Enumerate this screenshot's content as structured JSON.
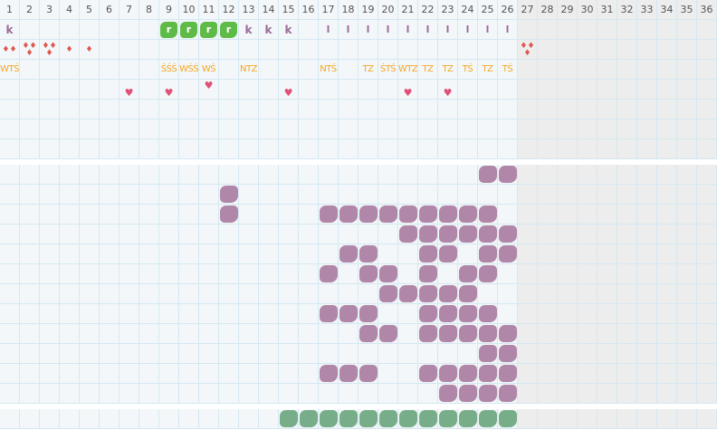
{
  "columns": [
    "1",
    "2",
    "3",
    "4",
    "5",
    "6",
    "7",
    "8",
    "9",
    "10",
    "11",
    "12",
    "13",
    "14",
    "15",
    "16",
    "17",
    "18",
    "19",
    "20",
    "21",
    "22",
    "23",
    "24",
    "25",
    "26",
    "27",
    "28",
    "29",
    "30",
    "31",
    "32",
    "33",
    "34",
    "35",
    "36"
  ],
  "active_days": 26,
  "colors": {
    "grid": "#d5e8f2",
    "cell": "#f3f7f9",
    "inactive": "#ededed",
    "letter": "#9a6b97",
    "badge": "#5fbb47",
    "drop": "#e0574d",
    "text": "#f5a623",
    "heart": "#e05078",
    "blob": "#b087a8",
    "blob_green": "#78ad8a"
  },
  "marks_row": {
    "1": "k",
    "9": "r",
    "10": "r",
    "11": "r",
    "12": "r",
    "13": "k",
    "14": "k",
    "15": "k",
    "17": "l",
    "18": "l",
    "19": "l",
    "20": "l",
    "21": "l",
    "22": "l",
    "23": "l",
    "24": "l",
    "25": "l",
    "26": "l"
  },
  "badge_days": [
    "9",
    "10",
    "11",
    "12"
  ],
  "drops_row": {
    "1": 2,
    "2": 3,
    "3": 3,
    "4": 1,
    "5": 1,
    "27": 3
  },
  "text_row": {
    "1": "WTŚ",
    "9": "ŚŚŚ",
    "10": "WŚŚ",
    "11": "WŚ",
    "13": "NTZ",
    "17": "NTŚ",
    "19": "TZ",
    "20": "ŚTŚ",
    "21": "WTZ",
    "22": "TZ",
    "23": "TZ",
    "24": "TŚ",
    "25": "TZ",
    "26": "TŚ"
  },
  "hearts_row": {
    "7": "low",
    "9": "low",
    "11": "high",
    "15": "low",
    "21": "low",
    "23": "low"
  },
  "heart_icon": "heart-icon",
  "drop_icon": "blood-drop-icon",
  "blob_grid": [
    [
      25,
      26
    ],
    [
      12
    ],
    [
      12,
      17,
      18,
      19,
      20,
      21,
      22,
      23,
      24,
      25
    ],
    [
      21,
      22,
      23,
      24,
      25,
      26
    ],
    [
      18,
      19,
      22,
      23,
      25,
      26
    ],
    [
      17,
      19,
      20,
      22,
      24,
      25
    ],
    [
      20,
      21,
      22,
      23,
      24
    ],
    [
      17,
      18,
      19,
      22,
      23,
      24,
      25
    ],
    [
      19,
      20,
      22,
      23,
      24,
      25,
      26
    ],
    [
      25,
      26
    ],
    [
      17,
      18,
      19,
      22,
      23,
      24,
      25,
      26
    ],
    [
      23,
      24,
      25,
      26
    ]
  ],
  "green_row": [
    15,
    16,
    17,
    18,
    19,
    20,
    21,
    22,
    23,
    24,
    25,
    26
  ]
}
